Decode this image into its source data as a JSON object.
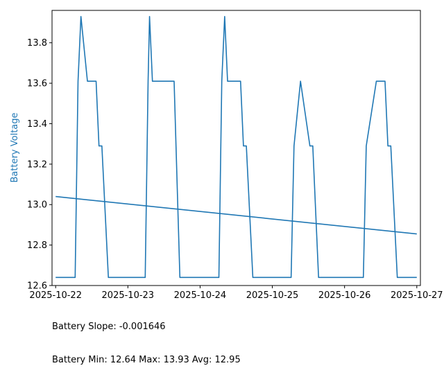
{
  "chart_data": {
    "type": "line",
    "title": "",
    "xlabel": "",
    "ylabel": "Battery Voltage",
    "ylabel_color": "#1f77b4",
    "line_color": "#1f77b4",
    "grid": false,
    "xlim": [
      -0.05,
      5.05
    ],
    "ylim": [
      12.6,
      13.96
    ],
    "x_ticks": [
      {
        "value": 0,
        "label": "2025-10-22"
      },
      {
        "value": 1,
        "label": "2025-10-23"
      },
      {
        "value": 2,
        "label": "2025-10-24"
      },
      {
        "value": 3,
        "label": "2025-10-25"
      },
      {
        "value": 4,
        "label": "2025-10-26"
      },
      {
        "value": 5,
        "label": "2025-10-27"
      }
    ],
    "y_ticks": [
      12.6,
      12.8,
      13.0,
      13.2,
      13.4,
      13.6,
      13.8
    ],
    "x_unit_note": "x values are days on the date axis, 0 = 2025-10-22",
    "series": [
      {
        "name": "",
        "values": [
          [
            0.0,
            12.64
          ],
          [
            0.27,
            12.64
          ],
          [
            0.31,
            13.61
          ],
          [
            0.35,
            13.93
          ],
          [
            0.44,
            13.61
          ],
          [
            0.56,
            13.61
          ],
          [
            0.6,
            13.29
          ],
          [
            0.64,
            13.29
          ],
          [
            0.73,
            12.64
          ],
          [
            1.24,
            12.64
          ],
          [
            1.28,
            13.61
          ],
          [
            1.3,
            13.93
          ],
          [
            1.34,
            13.61
          ],
          [
            1.64,
            13.61
          ],
          [
            1.72,
            12.64
          ],
          [
            2.26,
            12.64
          ],
          [
            2.3,
            13.61
          ],
          [
            2.34,
            13.93
          ],
          [
            2.38,
            13.61
          ],
          [
            2.56,
            13.61
          ],
          [
            2.6,
            13.29
          ],
          [
            2.64,
            13.29
          ],
          [
            2.73,
            12.64
          ],
          [
            3.26,
            12.64
          ],
          [
            3.3,
            13.29
          ],
          [
            3.39,
            13.61
          ],
          [
            3.52,
            13.29
          ],
          [
            3.56,
            13.29
          ],
          [
            3.64,
            12.64
          ],
          [
            4.26,
            12.64
          ],
          [
            4.3,
            13.29
          ],
          [
            4.44,
            13.61
          ],
          [
            4.56,
            13.61
          ],
          [
            4.6,
            13.29
          ],
          [
            4.64,
            13.29
          ],
          [
            4.73,
            12.64
          ],
          [
            5.0,
            12.64
          ]
        ]
      },
      {
        "name": "",
        "values": [
          [
            0.0,
            13.04
          ],
          [
            5.0,
            12.855
          ]
        ]
      }
    ]
  },
  "stats": {
    "slope_line": "Battery Slope: -0.001646",
    "minmax_line": "Battery Min: 12.64 Max: 13.93 Avg: 12.95"
  }
}
